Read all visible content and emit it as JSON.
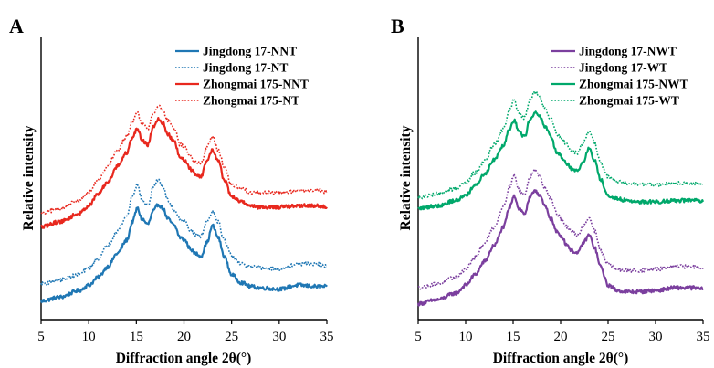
{
  "chart_data": [
    {
      "panel": "A",
      "type": "line",
      "xlabel": "Diffraction angle 2θ(°)",
      "ylabel": "Relative intensity",
      "xlim": [
        5,
        35
      ],
      "xticks": [
        "5",
        "10",
        "15",
        "20",
        "25",
        "30",
        "35"
      ],
      "ylim": [
        0,
        100
      ],
      "y_ticks_shown": false,
      "grid": false,
      "legend_position": "top-right",
      "x": [
        5,
        7,
        9,
        10,
        11,
        12,
        13,
        14,
        14.6,
        15.1,
        15.6,
        16.2,
        16.8,
        17.3,
        17.8,
        18.3,
        19,
        19.6,
        20.1,
        20.6,
        21.2,
        21.8,
        22.4,
        23,
        23.6,
        24.2,
        25,
        26,
        27,
        28,
        30,
        32,
        34,
        35
      ],
      "series": [
        {
          "name": "Jingdong 17-NNT",
          "color": "#1f77b4",
          "style": "solid",
          "values": [
            7,
            8.5,
            11,
            13,
            16,
            20,
            25,
            30,
            37,
            42,
            38,
            36,
            41,
            43.5,
            42,
            38,
            35.5,
            31,
            30,
            27,
            25,
            24,
            29,
            35.5,
            31,
            24,
            17,
            14,
            12.5,
            12,
            11.5,
            13,
            12.5,
            12.5
          ]
        },
        {
          "name": "Jingdong 17-NT",
          "color": "#1f77b4",
          "style": "dotted",
          "values": [
            13.5,
            15,
            17,
            19.5,
            23,
            28,
            33.5,
            39,
            47,
            51,
            45,
            43,
            50,
            53,
            50,
            45,
            41.5,
            38,
            37,
            34,
            32,
            31.5,
            37,
            41,
            37,
            30,
            24,
            21,
            20,
            19.5,
            19,
            21,
            21,
            20
          ]
        },
        {
          "name": "Zhongmai 175-NNT",
          "color": "#e8281e",
          "style": "solid",
          "values": [
            35,
            37,
            40,
            43,
            47.5,
            52,
            58,
            63,
            69,
            72,
            68,
            66,
            73,
            76,
            74,
            70,
            67,
            61,
            60,
            57,
            55,
            54,
            60,
            64,
            60,
            53,
            46.5,
            44.5,
            43,
            42.5,
            42.5,
            43,
            43,
            42.5
          ]
        },
        {
          "name": "Zhongmai 175-NT",
          "color": "#e8281e",
          "style": "dotted",
          "values": [
            40,
            42,
            45,
            48,
            53,
            58,
            64,
            69,
            75,
            78,
            74,
            72,
            78,
            81,
            79,
            75,
            72,
            66,
            65,
            62,
            59.5,
            59,
            65,
            69,
            64,
            58,
            51,
            49.5,
            48,
            48,
            48,
            48.5,
            49,
            48
          ]
        }
      ]
    },
    {
      "panel": "B",
      "type": "line",
      "xlabel": "Diffraction angle 2θ(°)",
      "ylabel": "Relative intensity",
      "xlim": [
        5,
        35
      ],
      "xticks": [
        "5",
        "10",
        "15",
        "20",
        "25",
        "30",
        "35"
      ],
      "ylim": [
        0,
        100
      ],
      "y_ticks_shown": false,
      "grid": false,
      "legend_position": "top-right",
      "x": [
        5,
        7,
        9,
        10,
        11,
        12,
        13,
        14,
        14.6,
        15.1,
        15.6,
        16.2,
        16.8,
        17.3,
        17.8,
        18.3,
        19,
        19.6,
        20.1,
        20.6,
        21.2,
        21.8,
        22.4,
        23,
        23.6,
        24.2,
        25,
        26,
        27,
        28,
        30,
        32,
        34,
        35
      ],
      "series": [
        {
          "name": "Jingdong 17-NWT",
          "color": "#7b3f9e",
          "style": "solid",
          "values": [
            6,
            7.5,
            10,
            13,
            17,
            22,
            28,
            35,
            42,
            47,
            42,
            40,
            46,
            49,
            47,
            43,
            38,
            33,
            31.5,
            28.5,
            26,
            25,
            29,
            32,
            27,
            20,
            13,
            11,
            10.5,
            10.5,
            11,
            12,
            12,
            11.5
          ]
        },
        {
          "name": "Jingdong 17-WT",
          "color": "#7b3f9e",
          "style": "dotted",
          "values": [
            12,
            13.5,
            16,
            19,
            23.5,
            29,
            35,
            43,
            50,
            54.5,
            49,
            47,
            54,
            57,
            54,
            50,
            45.5,
            40,
            38,
            35,
            33,
            32,
            35.5,
            38.5,
            33.5,
            26,
            21,
            19,
            18.5,
            18.5,
            19,
            20,
            20,
            19.5
          ]
        },
        {
          "name": "Zhongmai 175-NWT",
          "color": "#00a86b",
          "style": "solid",
          "values": [
            42,
            43,
            45,
            47,
            50.5,
            55,
            60.5,
            66,
            72,
            75.5,
            71,
            69,
            76,
            78,
            77,
            73,
            69,
            63,
            61.5,
            59,
            57,
            56,
            60,
            64.5,
            60,
            53,
            47,
            45.5,
            45,
            44.5,
            44.5,
            45,
            45,
            44.5
          ]
        },
        {
          "name": "Zhongmai 175-WT",
          "color": "#00a86b",
          "style": "dotted",
          "values": [
            46,
            47.5,
            49.5,
            52,
            55.5,
            60,
            66,
            72,
            79,
            83,
            78,
            76,
            83,
            86,
            84,
            80,
            75.5,
            70,
            68.5,
            66,
            63.5,
            63,
            67,
            71,
            66.5,
            59,
            54,
            52,
            51.5,
            51,
            51,
            51.5,
            51.5,
            51
          ]
        }
      ]
    }
  ]
}
